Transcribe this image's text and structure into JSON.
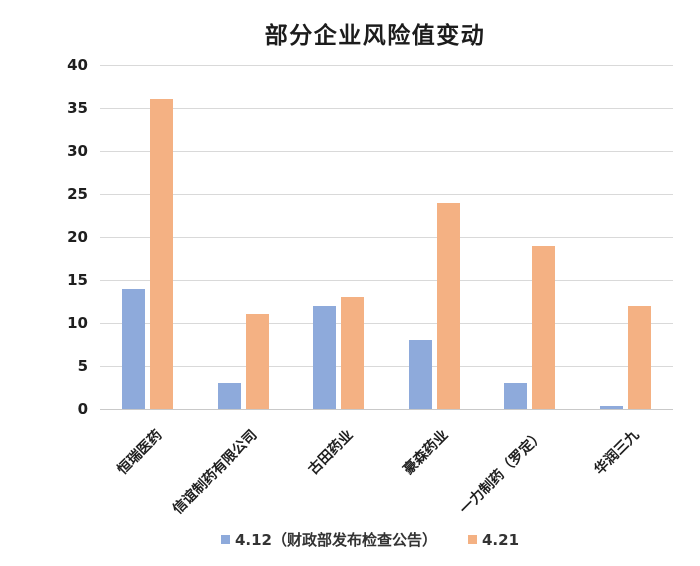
{
  "chart_data": {
    "type": "bar",
    "title": "部分企业风险值变动",
    "categories": [
      "恒瑞医药",
      "信谊制药有限公司",
      "古田药业",
      "豪森药业",
      "一力制药（罗定）",
      "华润三九"
    ],
    "series": [
      {
        "name": "4.12（财政部发布检查公告）",
        "color": "#8eaadb",
        "values": [
          14,
          3,
          12,
          8,
          3,
          0.4
        ]
      },
      {
        "name": "4.21",
        "color": "#f4b183",
        "values": [
          36,
          11,
          13,
          24,
          19,
          12
        ]
      }
    ],
    "ylim": [
      0,
      40
    ],
    "ytick_step": 5,
    "ytick_labels": [
      "0",
      "5",
      "10",
      "15",
      "20",
      "25",
      "30",
      "35",
      "40"
    ],
    "grid": true,
    "legend_position": "bottom",
    "colors": {
      "gridline": "#d9d9d9",
      "axis_line": "#c9c9c9",
      "text": "#1f1f1f",
      "background": "#ffffff"
    }
  }
}
